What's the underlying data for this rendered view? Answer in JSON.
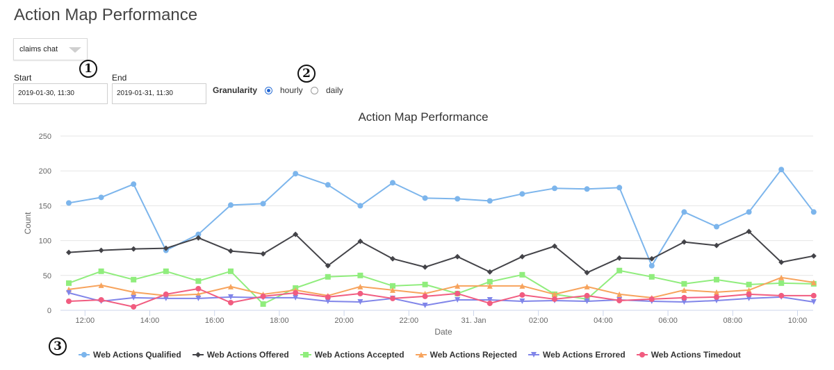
{
  "page": {
    "title": "Action Map Performance"
  },
  "controls": {
    "action_map_select": {
      "value": "claims chat"
    },
    "start": {
      "label": "Start",
      "value": "2019-01-30, 11:30"
    },
    "end": {
      "label": "End",
      "value": "2019-01-31, 11:30"
    },
    "granularity": {
      "label": "Granularity",
      "options": [
        {
          "label": "hourly",
          "checked": true
        },
        {
          "label": "daily",
          "checked": false
        }
      ]
    }
  },
  "annotations": [
    "1",
    "2",
    "3"
  ],
  "chart_data": {
    "type": "line",
    "title": "Action Map Performance",
    "xlabel": "Date",
    "ylabel": "Count",
    "ylim": [
      0,
      250
    ],
    "yticks": [
      0,
      50,
      100,
      150,
      200,
      250
    ],
    "xtick_labels": [
      "12:00",
      "14:00",
      "16:00",
      "18:00",
      "20:00",
      "22:00",
      "31. Jan",
      "02:00",
      "04:00",
      "06:00",
      "08:00",
      "10:00"
    ],
    "x": [
      "11:30",
      "12:30",
      "13:30",
      "14:30",
      "15:30",
      "16:30",
      "17:30",
      "18:30",
      "19:30",
      "20:30",
      "21:30",
      "22:30",
      "23:30",
      "00:30",
      "01:30",
      "02:30",
      "03:30",
      "04:30",
      "05:30",
      "06:30",
      "07:30",
      "08:30",
      "09:30",
      "10:30"
    ],
    "grid": true,
    "legend_position": "bottom",
    "series": [
      {
        "name": "Web Actions Qualified",
        "color": "#7cb5ec",
        "marker": "circle",
        "values": [
          154,
          162,
          181,
          86,
          109,
          151,
          153,
          196,
          180,
          150,
          183,
          161,
          160,
          157,
          167,
          175,
          174,
          176,
          64,
          141,
          120,
          141,
          202,
          141
        ]
      },
      {
        "name": "Web Actions Offered",
        "color": "#434348",
        "marker": "diamond",
        "values": [
          83,
          86,
          88,
          89,
          104,
          85,
          81,
          109,
          64,
          99,
          74,
          62,
          77,
          55,
          77,
          92,
          54,
          75,
          74,
          98,
          93,
          113,
          69,
          78
        ]
      },
      {
        "name": "Web Actions Accepted",
        "color": "#90ed7d",
        "marker": "square",
        "values": [
          39,
          56,
          44,
          56,
          42,
          56,
          9,
          32,
          48,
          50,
          35,
          37,
          24,
          41,
          51,
          23,
          16,
          57,
          48,
          38,
          44,
          37,
          39,
          38
        ]
      },
      {
        "name": "Web Actions Rejected",
        "color": "#f7a35c",
        "marker": "triangle",
        "values": [
          30,
          36,
          26,
          21,
          23,
          34,
          23,
          29,
          21,
          34,
          29,
          24,
          35,
          35,
          35,
          23,
          34,
          23,
          18,
          29,
          26,
          29,
          47,
          40
        ]
      },
      {
        "name": "Web Actions Errored",
        "color": "#8085e9",
        "marker": "triangle-down",
        "values": [
          25,
          13,
          18,
          17,
          17,
          19,
          18,
          18,
          13,
          12,
          17,
          7,
          15,
          15,
          13,
          14,
          13,
          15,
          13,
          12,
          14,
          17,
          19,
          12
        ]
      },
      {
        "name": "Web Actions Timedout",
        "color": "#f15c80",
        "marker": "circle",
        "values": [
          13,
          15,
          5,
          23,
          31,
          11,
          20,
          25,
          19,
          24,
          17,
          20,
          24,
          10,
          22,
          16,
          21,
          14,
          16,
          18,
          19,
          23,
          21,
          21
        ]
      }
    ]
  }
}
